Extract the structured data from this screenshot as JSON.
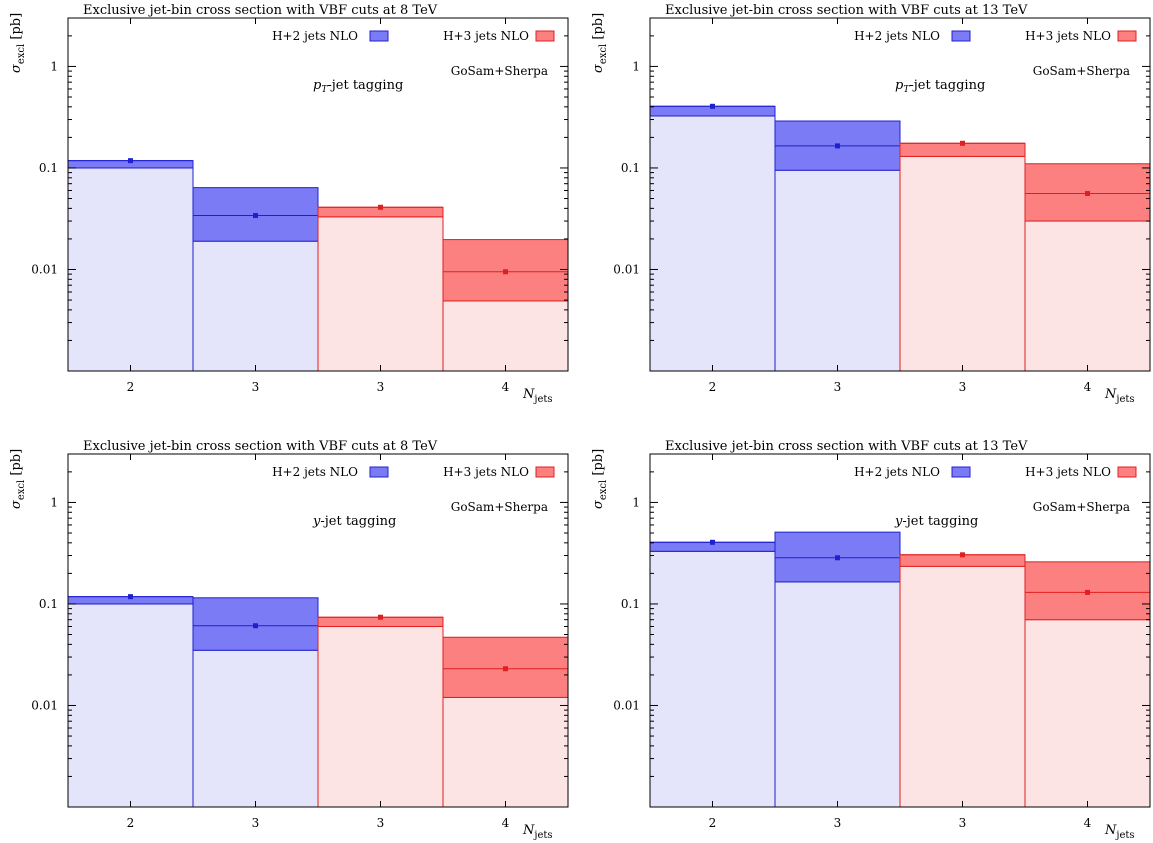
{
  "legend": {
    "h2_label": "H+2 jets NLO",
    "h3_label": "H+3 jets NLO",
    "generator": "GoSam+Sherpa"
  },
  "axes": {
    "ylabel_main": "σ",
    "ylabel_sub": "excl",
    "ylabel_unit": "[pb]",
    "xlabel_main": "N",
    "xlabel_sub": "jets",
    "yticks": [
      {
        "value": 1,
        "label": "1"
      },
      {
        "value": 0.1,
        "label": "0.1"
      },
      {
        "value": 0.01,
        "label": "0.01"
      }
    ]
  },
  "colors": {
    "h2_band": "#7b7bf5",
    "h2_fill": "#e4e4fa",
    "h2_line": "#2020d0",
    "h3_band": "#fc8080",
    "h3_fill": "#fde4e4",
    "h3_line": "#e02020"
  },
  "chart_data": [
    {
      "type": "bar",
      "title": "Exclusive jet-bin cross section with VBF cuts at 8 TeV",
      "tagging_main": "p",
      "tagging_sub": "T",
      "tagging_rest": "-jet tagging",
      "yscale": "log",
      "ylim": [
        0.001,
        3
      ],
      "legend_position": "top-right",
      "categories": [
        "2",
        "3",
        "3",
        "4"
      ],
      "bins": [
        {
          "series": "H+2 jets NLO",
          "value": 0.118,
          "band_low": 0.1,
          "band_high": 0.118
        },
        {
          "series": "H+2 jets NLO",
          "value": 0.034,
          "band_low": 0.019,
          "band_high": 0.064
        },
        {
          "series": "H+3 jets NLO",
          "value": 0.041,
          "band_low": 0.033,
          "band_high": 0.041
        },
        {
          "series": "H+3 jets NLO",
          "value": 0.0095,
          "band_low": 0.0049,
          "band_high": 0.0197
        }
      ]
    },
    {
      "type": "bar",
      "title": "Exclusive jet-bin cross section with VBF cuts at 13 TeV",
      "tagging_main": "p",
      "tagging_sub": "T",
      "tagging_rest": "-jet tagging",
      "yscale": "log",
      "ylim": [
        0.001,
        3
      ],
      "legend_position": "top-right",
      "categories": [
        "2",
        "3",
        "3",
        "4"
      ],
      "bins": [
        {
          "series": "H+2 jets NLO",
          "value": 0.405,
          "band_low": 0.325,
          "band_high": 0.405
        },
        {
          "series": "H+2 jets NLO",
          "value": 0.165,
          "band_low": 0.095,
          "band_high": 0.29
        },
        {
          "series": "H+3 jets NLO",
          "value": 0.175,
          "band_low": 0.13,
          "band_high": 0.175
        },
        {
          "series": "H+3 jets NLO",
          "value": 0.056,
          "band_low": 0.03,
          "band_high": 0.11
        }
      ]
    },
    {
      "type": "bar",
      "title": "Exclusive jet-bin cross section with VBF cuts at 8 TeV",
      "tagging_main": "y",
      "tagging_sub": "",
      "tagging_rest": "-jet tagging",
      "yscale": "log",
      "ylim": [
        0.001,
        3
      ],
      "legend_position": "top-right",
      "categories": [
        "2",
        "3",
        "3",
        "4"
      ],
      "bins": [
        {
          "series": "H+2 jets NLO",
          "value": 0.118,
          "band_low": 0.1,
          "band_high": 0.118
        },
        {
          "series": "H+2 jets NLO",
          "value": 0.061,
          "band_low": 0.035,
          "band_high": 0.115
        },
        {
          "series": "H+3 jets NLO",
          "value": 0.074,
          "band_low": 0.06,
          "band_high": 0.074
        },
        {
          "series": "H+3 jets NLO",
          "value": 0.023,
          "band_low": 0.012,
          "band_high": 0.047
        }
      ]
    },
    {
      "type": "bar",
      "title": "Exclusive jet-bin cross section with VBF cuts at 13 TeV",
      "tagging_main": "y",
      "tagging_sub": "",
      "tagging_rest": "-jet tagging",
      "yscale": "log",
      "ylim": [
        0.001,
        3
      ],
      "legend_position": "top-right",
      "categories": [
        "2",
        "3",
        "3",
        "4"
      ],
      "bins": [
        {
          "series": "H+2 jets NLO",
          "value": 0.405,
          "band_low": 0.33,
          "band_high": 0.405
        },
        {
          "series": "H+2 jets NLO",
          "value": 0.285,
          "band_low": 0.165,
          "band_high": 0.51
        },
        {
          "series": "H+3 jets NLO",
          "value": 0.305,
          "band_low": 0.235,
          "band_high": 0.305
        },
        {
          "series": "H+3 jets NLO",
          "value": 0.13,
          "band_low": 0.07,
          "band_high": 0.26
        }
      ]
    }
  ]
}
